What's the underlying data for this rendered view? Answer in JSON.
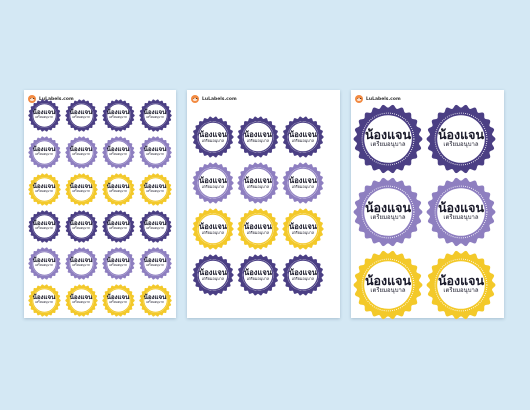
{
  "brand": "LuLabels.com",
  "label_line1": "น้องแจน",
  "label_line2": "เตรียมอนุบาล",
  "colors": {
    "background": "#d4e8f4",
    "purple_dark": "#4b3f84",
    "purple_light": "#8e7fc0",
    "yellow": "#f3c92a",
    "sheet": "#ffffff"
  },
  "sheets": [
    {
      "name": "sheet-24",
      "rows": [
        [
          "purple_dark",
          "purple_dark",
          "purple_dark",
          "purple_dark"
        ],
        [
          "purple_light",
          "purple_light",
          "purple_light",
          "purple_light"
        ],
        [
          "yellow",
          "yellow",
          "yellow",
          "yellow"
        ],
        [
          "purple_dark",
          "purple_dark",
          "purple_dark",
          "purple_dark"
        ],
        [
          "purple_light",
          "purple_light",
          "purple_light",
          "purple_light"
        ],
        [
          "yellow",
          "yellow",
          "yellow",
          "yellow"
        ]
      ]
    },
    {
      "name": "sheet-12",
      "rows": [
        [
          "purple_dark",
          "purple_dark",
          "purple_dark"
        ],
        [
          "purple_light",
          "purple_light",
          "purple_light"
        ],
        [
          "yellow",
          "yellow",
          "yellow"
        ],
        [
          "purple_dark",
          "purple_dark",
          "purple_dark"
        ]
      ]
    },
    {
      "name": "sheet-6",
      "rows": [
        [
          "purple_dark",
          "purple_dark"
        ],
        [
          "purple_light",
          "purple_light"
        ],
        [
          "yellow",
          "yellow"
        ]
      ]
    }
  ]
}
